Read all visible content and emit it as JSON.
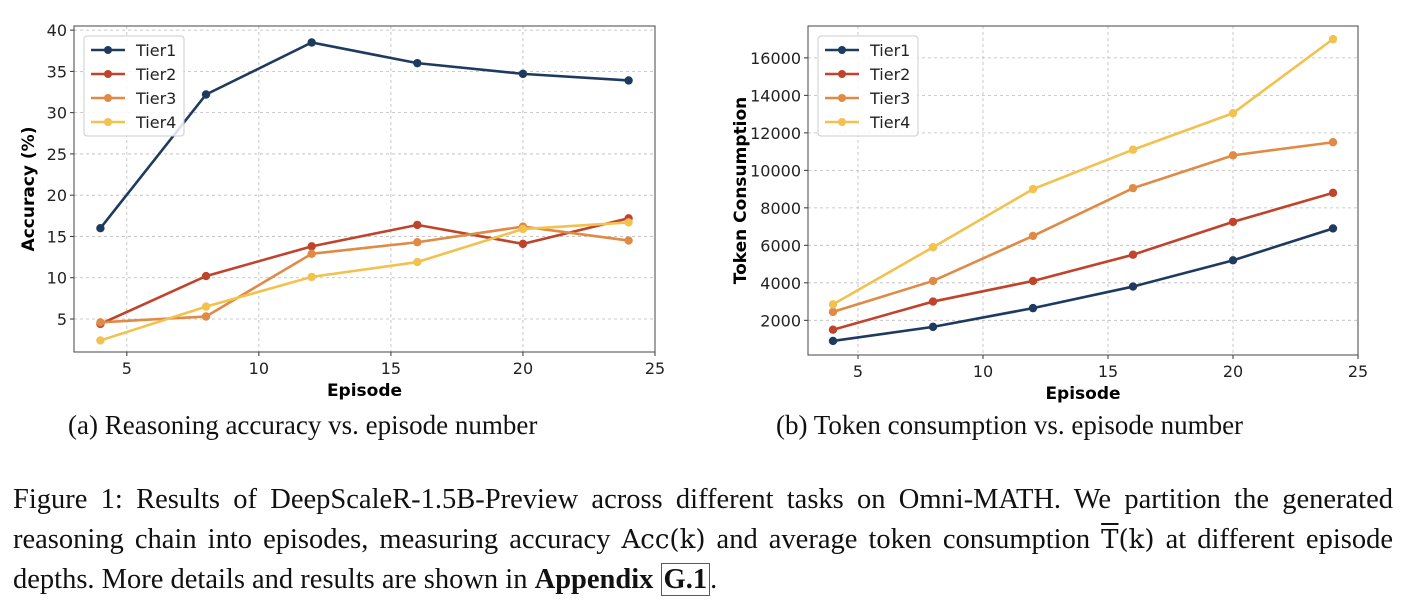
{
  "chart_data": [
    {
      "type": "line",
      "xlabel": "Episode",
      "ylabel": "Accuracy (%)",
      "xlim": [
        3,
        25
      ],
      "ylim": [
        1,
        40.5
      ],
      "xticks": [
        5,
        10,
        15,
        20,
        25
      ],
      "yticks": [
        5,
        10,
        15,
        20,
        25,
        30,
        35,
        40
      ],
      "grid": true,
      "legend": "top-left",
      "x": [
        4,
        8,
        12,
        16,
        20,
        24
      ],
      "series": [
        {
          "name": "Tier1",
          "color": "#1f3a5f",
          "values": [
            16.0,
            32.2,
            38.5,
            36.0,
            34.7,
            33.9
          ]
        },
        {
          "name": "Tier2",
          "color": "#c0432b",
          "values": [
            4.4,
            10.2,
            13.8,
            16.4,
            14.1,
            17.2
          ]
        },
        {
          "name": "Tier3",
          "color": "#e08a45",
          "values": [
            4.6,
            5.3,
            12.9,
            14.3,
            16.2,
            14.5
          ]
        },
        {
          "name": "Tier4",
          "color": "#f2c14e",
          "values": [
            2.4,
            6.5,
            10.1,
            11.9,
            15.9,
            16.7
          ]
        }
      ]
    },
    {
      "type": "line",
      "xlabel": "Episode",
      "ylabel": "Token Consumption",
      "xlim": [
        3,
        25
      ],
      "ylim": [
        150,
        17700
      ],
      "xticks": [
        5,
        10,
        15,
        20,
        25
      ],
      "yticks": [
        2000,
        4000,
        6000,
        8000,
        10000,
        12000,
        14000,
        16000
      ],
      "grid": true,
      "legend": "top-left",
      "x": [
        4,
        8,
        12,
        16,
        20,
        24
      ],
      "series": [
        {
          "name": "Tier1",
          "color": "#1f3a5f",
          "values": [
            900,
            1650,
            2650,
            3800,
            5200,
            6900
          ]
        },
        {
          "name": "Tier2",
          "color": "#c0432b",
          "values": [
            1500,
            3000,
            4100,
            5500,
            7250,
            8800
          ]
        },
        {
          "name": "Tier3",
          "color": "#e08a45",
          "values": [
            2450,
            4100,
            6500,
            9050,
            10800,
            11500
          ]
        },
        {
          "name": "Tier4",
          "color": "#f2c14e",
          "values": [
            2850,
            5900,
            9000,
            11100,
            13050,
            17000
          ]
        }
      ]
    }
  ],
  "subcaptions": {
    "a": "(a) Reasoning accuracy vs. episode number",
    "b": "(b) Token consumption vs. episode number"
  },
  "caption": {
    "part1": "Figure 1: Results of DeepScaleR-1.5B-Preview across different tasks on Omni-MATH. We partition the generated reasoning chain into episodes, measuring accuracy ",
    "acc": "Acc(k)",
    "part2": " and average token consumption ",
    "tbar": "T",
    "tk": "(k)",
    "part3": " at different episode depths. More details and results are shown in ",
    "appendix": "Appendix",
    "link": "G.1",
    "end": "."
  }
}
